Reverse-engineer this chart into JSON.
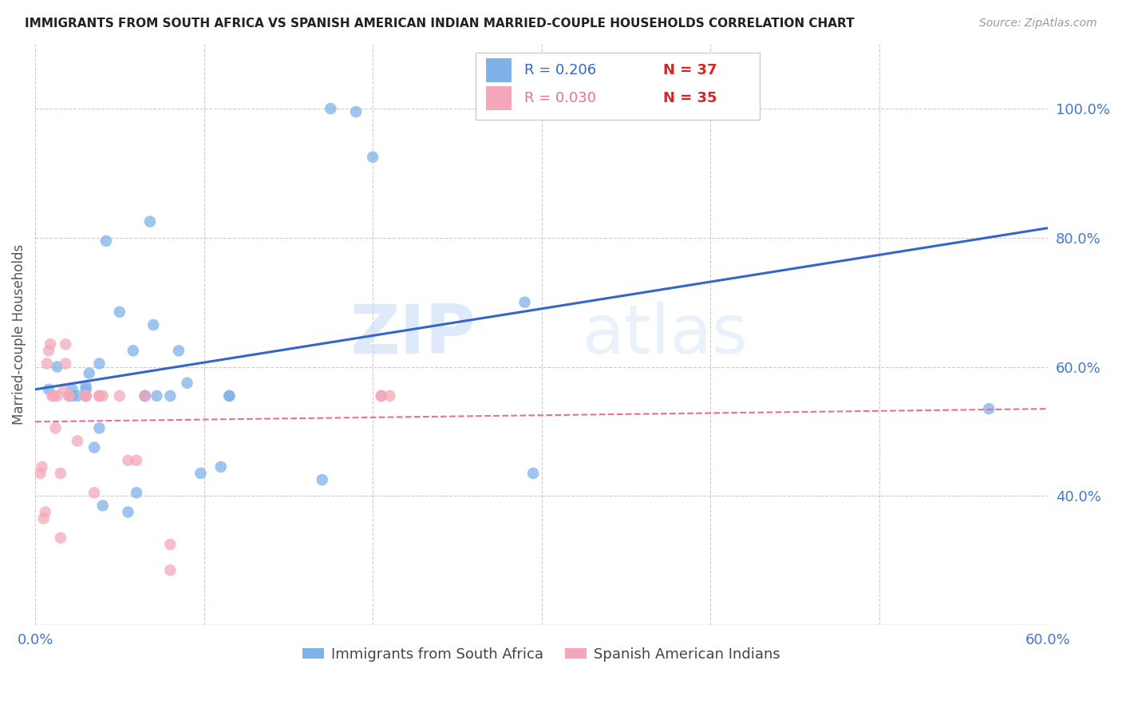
{
  "title": "IMMIGRANTS FROM SOUTH AFRICA VS SPANISH AMERICAN INDIAN MARRIED-COUPLE HOUSEHOLDS CORRELATION CHART",
  "source": "Source: ZipAtlas.com",
  "ylabel": "Married-couple Households",
  "xlim": [
    0.0,
    0.6
  ],
  "ylim": [
    0.2,
    1.1
  ],
  "xticks": [
    0.0,
    0.1,
    0.2,
    0.3,
    0.4,
    0.5,
    0.6
  ],
  "xtick_labels": [
    "0.0%",
    "",
    "",
    "",
    "",
    "",
    "60.0%"
  ],
  "ytick_labels_right": [
    "40.0%",
    "60.0%",
    "80.0%",
    "100.0%"
  ],
  "ytick_positions_right": [
    0.4,
    0.6,
    0.8,
    1.0
  ],
  "legend_R1": "R = 0.206",
  "legend_N1": "N = 37",
  "legend_R2": "R = 0.030",
  "legend_N2": "N = 35",
  "legend_label1": "Immigrants from South Africa",
  "legend_label2": "Spanish American Indians",
  "color_blue": "#7EB2E8",
  "color_blue_line": "#3366CC",
  "color_pink": "#F4A7B9",
  "color_pink_line": "#E87090",
  "color_axis_text": "#4477CC",
  "watermark_zip": "ZIP",
  "watermark_atlas": "atlas",
  "blue_scatter_x": [
    0.008,
    0.013,
    0.022,
    0.022,
    0.025,
    0.03,
    0.03,
    0.03,
    0.032,
    0.035,
    0.038,
    0.038,
    0.04,
    0.042,
    0.05,
    0.055,
    0.058,
    0.06,
    0.065,
    0.065,
    0.068,
    0.07,
    0.072,
    0.08,
    0.085,
    0.09,
    0.098,
    0.11,
    0.115,
    0.115,
    0.17,
    0.175,
    0.19,
    0.2,
    0.29,
    0.295,
    0.565
  ],
  "blue_scatter_y": [
    0.565,
    0.6,
    0.565,
    0.555,
    0.555,
    0.555,
    0.565,
    0.57,
    0.59,
    0.475,
    0.505,
    0.605,
    0.385,
    0.795,
    0.685,
    0.375,
    0.625,
    0.405,
    0.555,
    0.555,
    0.825,
    0.665,
    0.555,
    0.555,
    0.625,
    0.575,
    0.435,
    0.445,
    0.555,
    0.555,
    0.425,
    1.0,
    0.995,
    0.925,
    0.7,
    0.435,
    0.535
  ],
  "pink_scatter_x": [
    0.003,
    0.004,
    0.005,
    0.006,
    0.007,
    0.008,
    0.009,
    0.01,
    0.011,
    0.012,
    0.013,
    0.015,
    0.015,
    0.017,
    0.018,
    0.018,
    0.02,
    0.02,
    0.025,
    0.03,
    0.03,
    0.03,
    0.035,
    0.038,
    0.038,
    0.04,
    0.05,
    0.055,
    0.06,
    0.065,
    0.08,
    0.08,
    0.205,
    0.205,
    0.21
  ],
  "pink_scatter_y": [
    0.435,
    0.445,
    0.365,
    0.375,
    0.605,
    0.625,
    0.635,
    0.555,
    0.555,
    0.505,
    0.555,
    0.335,
    0.435,
    0.565,
    0.605,
    0.635,
    0.555,
    0.555,
    0.485,
    0.555,
    0.555,
    0.555,
    0.405,
    0.555,
    0.555,
    0.555,
    0.555,
    0.455,
    0.455,
    0.555,
    0.285,
    0.325,
    0.555,
    0.555,
    0.555
  ],
  "blue_line_x": [
    0.0,
    0.6
  ],
  "blue_line_y": [
    0.565,
    0.815
  ],
  "pink_line_x": [
    0.0,
    0.6
  ],
  "pink_line_y": [
    0.515,
    0.535
  ]
}
